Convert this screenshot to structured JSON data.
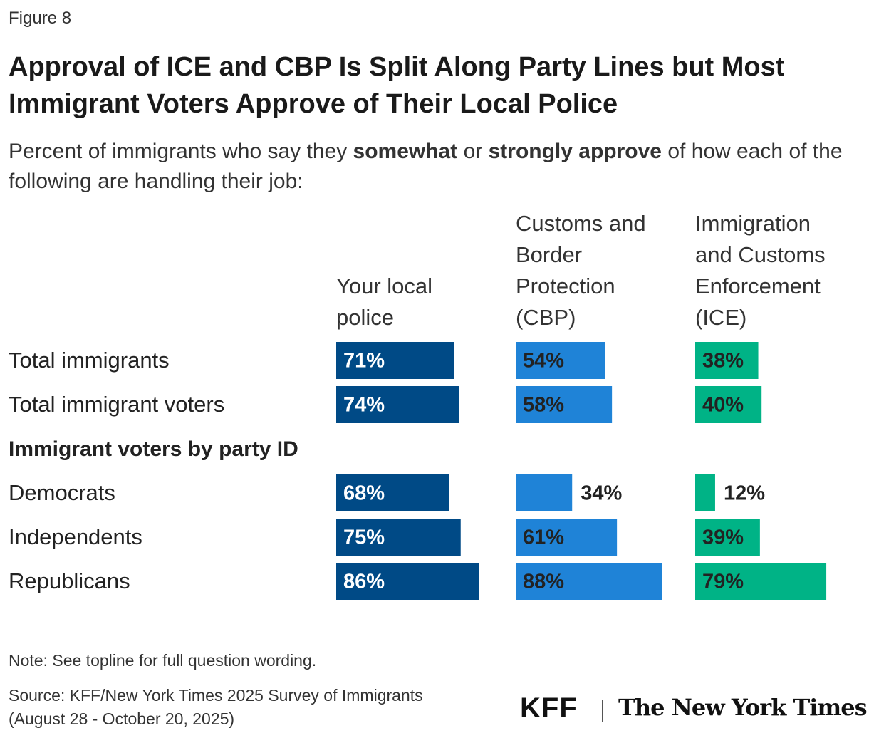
{
  "chart_data": {
    "type": "bar",
    "orientation": "horizontal",
    "figure_label": "Figure 8",
    "title": "Approval of ICE and CBP Is Split Along Party Lines but Most Immigrant Voters Approve of Their Local Police",
    "subtitle": [
      {
        "text": "Percent of immigrants who say they ",
        "bold": false
      },
      {
        "text": "somewhat",
        "bold": true
      },
      {
        "text": " or ",
        "bold": false
      },
      {
        "text": "strongly approve",
        "bold": true
      },
      {
        "text": " of how each of the following are handling their job:",
        "bold": false
      }
    ],
    "categories": [
      "Total immigrants",
      "Total immigrant voters",
      "Immigrant voters by party ID",
      "Democrats",
      "Independents",
      "Republicans"
    ],
    "series": [
      {
        "name": "Your local police",
        "color": "#004A86",
        "values": [
          71,
          74,
          null,
          68,
          75,
          86
        ],
        "value_labels": [
          "71%",
          "74%",
          null,
          "68%",
          "75%",
          "86%"
        ]
      },
      {
        "name": "Customs and Border Protection (CBP)",
        "color": "#1F83D7",
        "values": [
          54,
          58,
          null,
          34,
          61,
          88
        ],
        "value_labels": [
          "54%",
          "58%",
          null,
          "34%",
          "61%",
          "88%"
        ]
      },
      {
        "name": "Immigration and Customs Enforcement (ICE)",
        "color": "#00B386",
        "values": [
          38,
          40,
          null,
          12,
          39,
          79
        ],
        "value_labels": [
          "38%",
          "40%",
          null,
          "12%",
          "39%",
          "79%"
        ]
      }
    ],
    "note": "Note: See topline for full question wording.",
    "source": [
      "Source: KFF/New York Times 2025 Survey of Immigrants",
      "(August 28 - October 20, 2025)"
    ],
    "logos": [
      "KFF",
      "The New York Times"
    ]
  }
}
